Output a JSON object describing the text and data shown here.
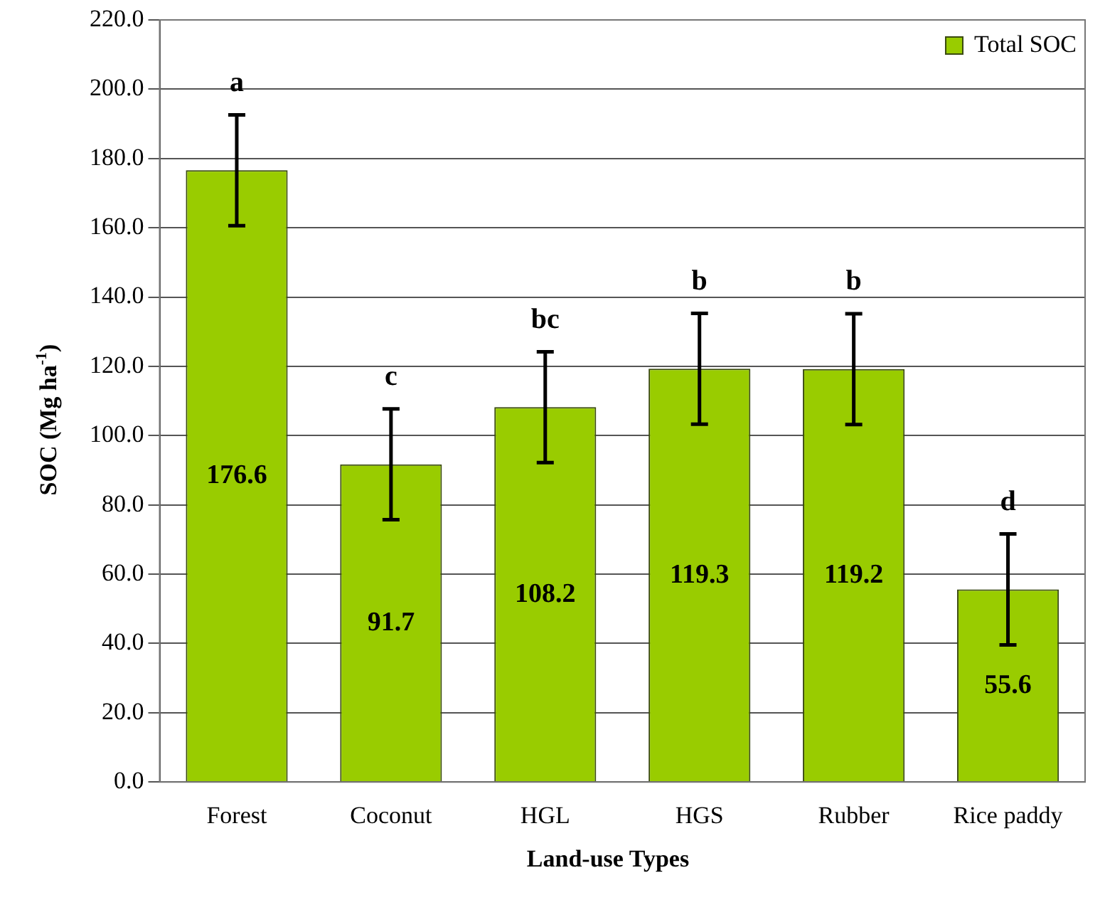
{
  "chart_data": {
    "type": "bar",
    "xlabel": "Land-use Types",
    "ylabel": "SOC (Mg ha$^{-1}$)",
    "categories": [
      "Forest",
      "Coconut",
      "HGL",
      "HGS",
      "Rubber",
      "Rice paddy"
    ],
    "series": [
      {
        "name": "Total SOC",
        "color": "#99cc00",
        "values": [
          176.6,
          91.7,
          108.2,
          119.3,
          119.2,
          55.6
        ],
        "errors": [
          16,
          16,
          16,
          16,
          16,
          16
        ]
      }
    ],
    "ylim": [
      0,
      220
    ],
    "yticks": [
      {
        "value": 0,
        "label": "0.0"
      },
      {
        "value": 20,
        "label": "20.0"
      },
      {
        "value": 40,
        "label": "40.0"
      },
      {
        "value": 60,
        "label": "60.0"
      },
      {
        "value": 80,
        "label": "80.0"
      },
      {
        "value": 100,
        "label": "100.0"
      },
      {
        "value": 120,
        "label": "120.0"
      },
      {
        "value": 140,
        "label": "140.0"
      },
      {
        "value": 160,
        "label": "160.0"
      },
      {
        "value": 180,
        "label": "180.0"
      },
      {
        "value": 200,
        "label": "200.0"
      },
      {
        "value": 220,
        "label": "220.0"
      }
    ],
    "annotations": [
      "a",
      "c",
      "bc",
      "b",
      "b",
      "d"
    ],
    "data_labels": true,
    "grid": "y",
    "legend": "top right"
  }
}
